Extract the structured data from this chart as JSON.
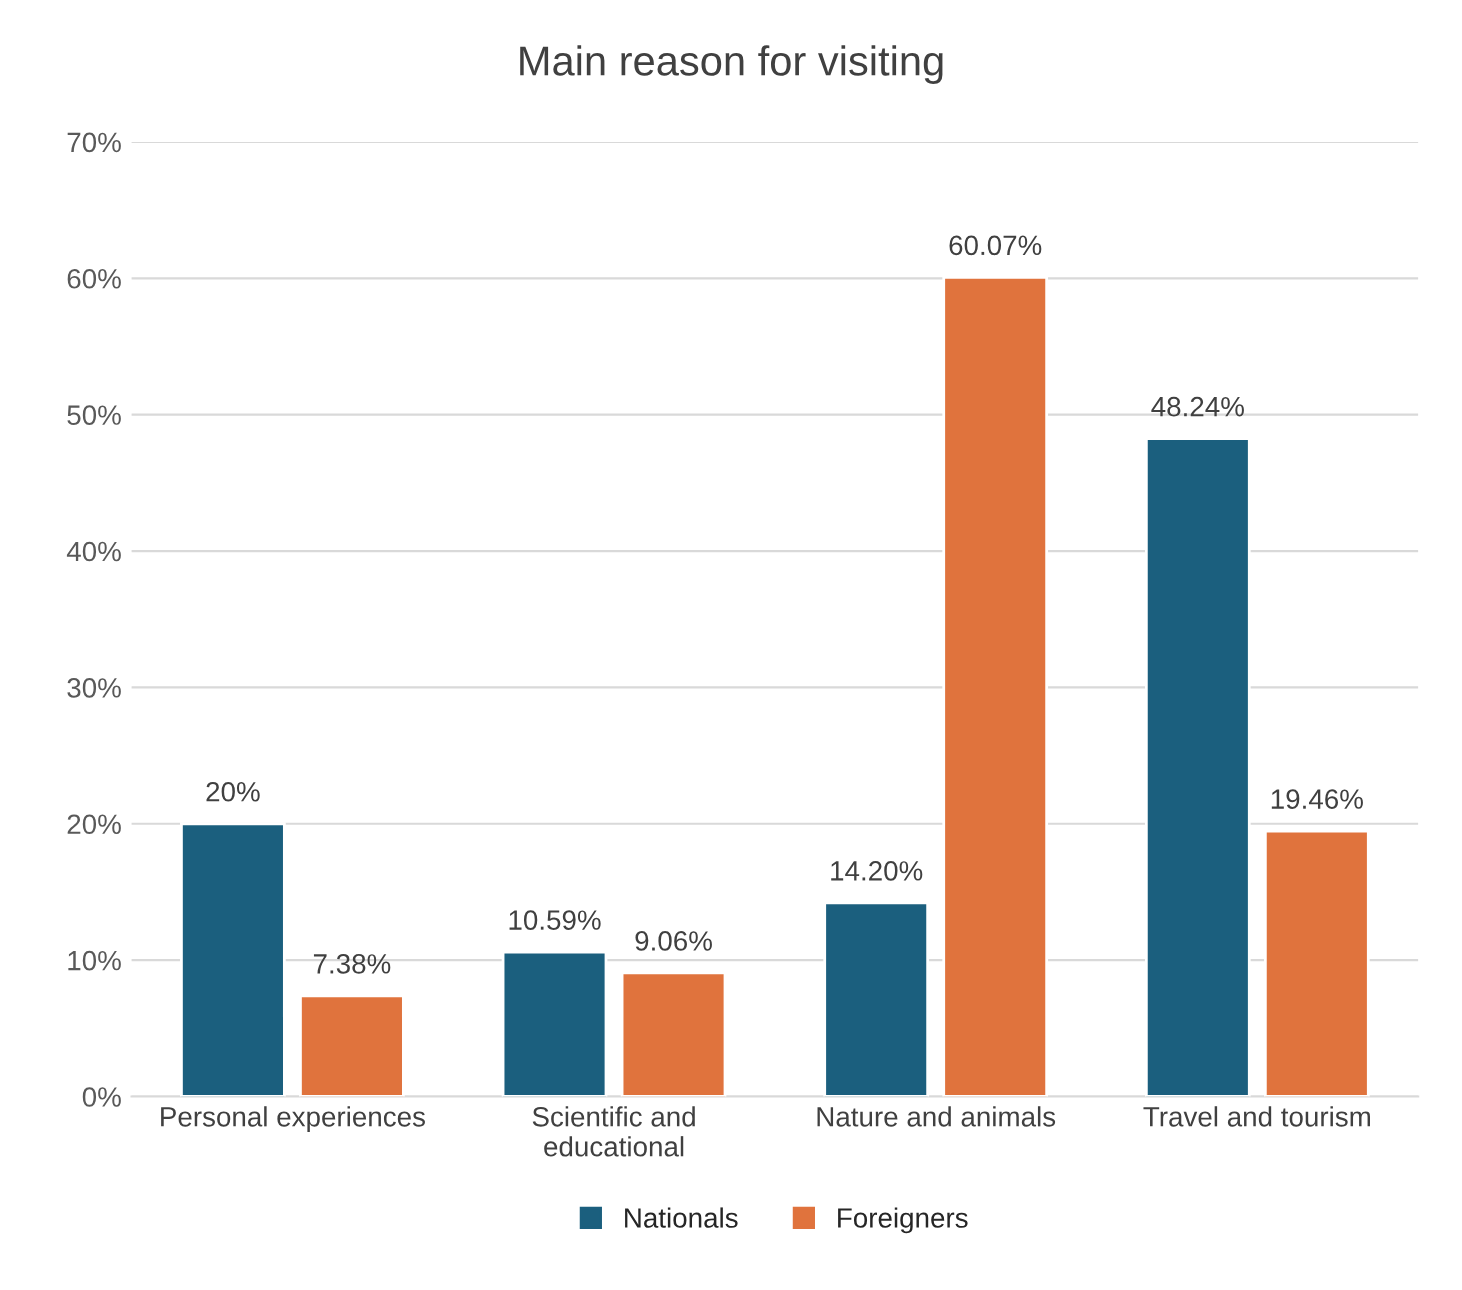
{
  "chart_data": {
    "type": "bar",
    "title": "Main reason for visiting",
    "categories": [
      "Personal experiences",
      "Scientific and\neducational",
      "Nature and animals",
      "Travel and tourism"
    ],
    "series": [
      {
        "name": "Nationals",
        "color": "#1b5f7e",
        "values": [
          20,
          10.59,
          14.2,
          48.24
        ],
        "value_labels": [
          "20%",
          "10.59%",
          "14.20%",
          "48.24%"
        ]
      },
      {
        "name": "Foreigners",
        "color": "#e0733d",
        "values": [
          7.38,
          9.06,
          60.07,
          19.46
        ],
        "value_labels": [
          "7.38%",
          "9.06%",
          "60.07%",
          "19.46%"
        ]
      }
    ],
    "ylim": [
      0,
      70
    ],
    "yticks": [
      {
        "value": 0,
        "label": "0%"
      },
      {
        "value": 10,
        "label": "10%"
      },
      {
        "value": 20,
        "label": "20%"
      },
      {
        "value": 30,
        "label": "30%"
      },
      {
        "value": 40,
        "label": "40%"
      },
      {
        "value": 50,
        "label": "50%"
      },
      {
        "value": 60,
        "label": "60%"
      },
      {
        "value": 70,
        "label": "70%"
      }
    ],
    "grid": "y",
    "legend": "bottom"
  }
}
